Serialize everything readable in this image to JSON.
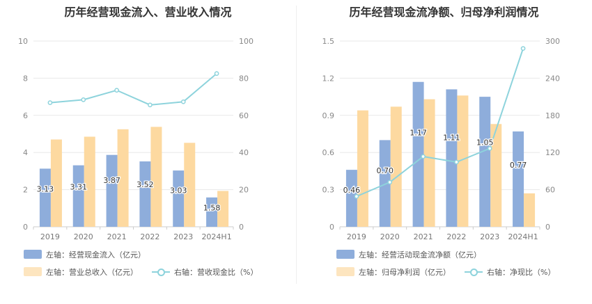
{
  "chart_data": [
    {
      "type": "bar+line",
      "title": "历年经营现金流入、营业收入情况",
      "categories": [
        "2019",
        "2020",
        "2021",
        "2022",
        "2023",
        "2024H1"
      ],
      "left_axis": {
        "min": 0,
        "max": 10,
        "ticks": [
          "0",
          "2",
          "4",
          "6",
          "8",
          "10"
        ]
      },
      "right_axis": {
        "min": 0,
        "max": 100,
        "ticks": [
          "0",
          "20",
          "40",
          "60",
          "80",
          "100"
        ]
      },
      "series": [
        {
          "name": "左轴：经营现金流入（亿元）",
          "kind": "bar",
          "axis": "left",
          "color": "#8eaddb",
          "values": [
            3.13,
            3.31,
            3.87,
            3.52,
            3.03,
            1.58
          ],
          "labels": [
            "3.13",
            "3.31",
            "3.87",
            "3.52",
            "3.03",
            "1.58"
          ]
        },
        {
          "name": "左轴：营业总收入（亿元）",
          "kind": "bar",
          "axis": "left",
          "color": "#fdd9a0",
          "values": [
            4.7,
            4.85,
            5.25,
            5.38,
            4.52,
            1.93
          ]
        },
        {
          "name": "右轴：营收现金比（%）",
          "kind": "line",
          "axis": "right",
          "color": "#8dd3dc",
          "values": [
            66.8,
            68.4,
            73.5,
            65.6,
            67.3,
            82.5
          ]
        }
      ]
    },
    {
      "type": "bar+line",
      "title": "历年经营现金流净额、归母净利润情况",
      "categories": [
        "2019",
        "2020",
        "2021",
        "2022",
        "2023",
        "2024H1"
      ],
      "left_axis": {
        "min": 0,
        "max": 1.5,
        "ticks": [
          "0",
          "0.3",
          "0.6",
          "0.9",
          "1.2",
          "1.5"
        ]
      },
      "right_axis": {
        "min": 0,
        "max": 300,
        "ticks": [
          "0",
          "60",
          "120",
          "180",
          "240",
          "300"
        ]
      },
      "series": [
        {
          "name": "左轴：经营活动现金流净额（亿元）",
          "kind": "bar",
          "axis": "left",
          "color": "#8eaddb",
          "values": [
            0.46,
            0.7,
            1.17,
            1.11,
            1.05,
            0.77
          ],
          "labels": [
            "0.46",
            "0.70",
            "1.17",
            "1.11",
            "1.05",
            "0.77"
          ]
        },
        {
          "name": "左轴：归母净利润（亿元）",
          "kind": "bar",
          "axis": "left",
          "color": "#fdd9a0",
          "values": [
            0.94,
            0.97,
            1.03,
            1.06,
            0.83,
            0.27
          ]
        },
        {
          "name": "右轴：净现比（%）",
          "kind": "line",
          "axis": "right",
          "color": "#8dd3dc",
          "values": [
            49.0,
            72.0,
            113.5,
            104.5,
            126.5,
            288.0
          ]
        }
      ]
    }
  ]
}
